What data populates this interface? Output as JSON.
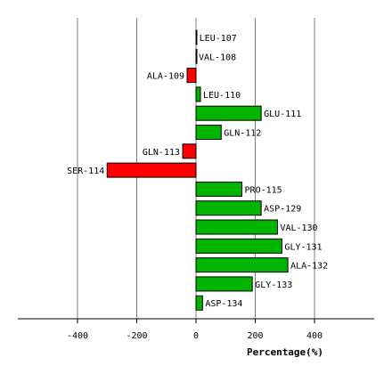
{
  "chart_data": {
    "type": "bar",
    "orientation": "horizontal",
    "xlabel": "Percentage(%)",
    "xlim": [
      -600,
      600
    ],
    "x_ticks": [
      -400,
      -200,
      0,
      200,
      400
    ],
    "grid": "vertical",
    "categories": [
      "LEU-107",
      "VAL-108",
      "ALA-109",
      "LEU-110",
      "GLU-111",
      "GLN-112",
      "GLN-113",
      "SER-114",
      "PRO-115",
      "ASP-129",
      "VAL-130",
      "GLY-131",
      "ALA-132",
      "GLY-133",
      "ASP-134"
    ],
    "values": [
      2,
      0,
      -30,
      15,
      220,
      85,
      -45,
      -300,
      155,
      220,
      275,
      290,
      310,
      190,
      22
    ],
    "colors": {
      "positive": "#00b400",
      "negative": "#ff0000",
      "outline": "#000000",
      "grid": "#808080"
    }
  }
}
